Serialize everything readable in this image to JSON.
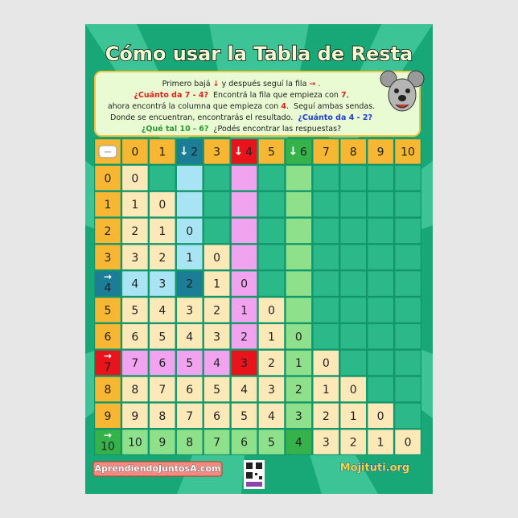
{
  "poster": {
    "title": "Cómo usar la Tabla de Resta",
    "instructions": [
      [
        {
          "text": "Primero bajá ",
          "color": "#222"
        },
        {
          "text": "↓",
          "color": "#e0201b"
        },
        {
          "text": " y después seguí la fila ",
          "color": "#222"
        },
        {
          "text": "→",
          "color": "#e0201b"
        },
        {
          "text": " .",
          "color": "#222"
        }
      ],
      [
        {
          "text": "¿Cuánto da 7 - 4?",
          "color": "#e0201b"
        },
        {
          "text": "  Encontrá la fila que empieza con ",
          "color": "#222"
        },
        {
          "text": "7",
          "color": "#e0201b"
        },
        {
          "text": ",",
          "color": "#222"
        }
      ],
      [
        {
          "text": "ahora encontrá la columna que empieza con ",
          "color": "#222"
        },
        {
          "text": "4",
          "color": "#e0201b"
        },
        {
          "text": ".  Seguí ambas sendas.",
          "color": "#222"
        }
      ],
      [
        {
          "text": "Donde se encuentran, encontrarás el resultado.  ",
          "color": "#222"
        },
        {
          "text": "¿Cuánto da 4 - 2?",
          "color": "#1f3fd0"
        }
      ],
      [
        {
          "text": "¿Qué tal 10 - 6?",
          "color": "#2a9a2a"
        },
        {
          "text": "  ¿Podés encontrar las respuestas?",
          "color": "#222"
        }
      ]
    ],
    "table": {
      "corner": "−",
      "columns": [
        {
          "label": "0"
        },
        {
          "label": "1"
        },
        {
          "label": "2",
          "arrow": "↓",
          "color": "#1c7d96",
          "tint": "#a9e4f5"
        },
        {
          "label": "3"
        },
        {
          "label": "4",
          "arrow": "↓",
          "color": "#e8131b",
          "tint": "#f2a3ef"
        },
        {
          "label": "5"
        },
        {
          "label": "6",
          "arrow": "↓",
          "color": "#36b24a",
          "tint": "#8fe08a"
        },
        {
          "label": "7"
        },
        {
          "label": "8"
        },
        {
          "label": "9"
        },
        {
          "label": "10"
        }
      ],
      "rows": [
        {
          "label": "0",
          "cells": [
            "0"
          ]
        },
        {
          "label": "1",
          "cells": [
            "1",
            "0"
          ]
        },
        {
          "label": "2",
          "cells": [
            "2",
            "1",
            "0"
          ]
        },
        {
          "label": "3",
          "cells": [
            "3",
            "2",
            "1",
            "0"
          ]
        },
        {
          "label": "4",
          "arrow": "→",
          "color": "#1c7d96",
          "cells": [
            "4",
            "3",
            "2",
            "1",
            "0"
          ]
        },
        {
          "label": "5",
          "cells": [
            "5",
            "4",
            "3",
            "2",
            "1",
            "0"
          ]
        },
        {
          "label": "6",
          "cells": [
            "6",
            "5",
            "4",
            "3",
            "2",
            "1",
            "0"
          ]
        },
        {
          "label": "7",
          "arrow": "→",
          "color": "#e8131b",
          "cells": [
            "7",
            "6",
            "5",
            "4",
            "3",
            "2",
            "1",
            "0"
          ]
        },
        {
          "label": "8",
          "cells": [
            "8",
            "7",
            "6",
            "5",
            "4",
            "3",
            "2",
            "1",
            "0"
          ]
        },
        {
          "label": "9",
          "cells": [
            "9",
            "8",
            "7",
            "6",
            "5",
            "4",
            "3",
            "2",
            "1",
            "0"
          ]
        },
        {
          "label": "10",
          "arrow": "→",
          "color": "#36b24a",
          "cells": [
            "10",
            "9",
            "8",
            "7",
            "6",
            "5",
            "4",
            "3",
            "2",
            "1",
            "0"
          ]
        }
      ]
    },
    "footer": {
      "left": "AprendiendoJuntosA.com",
      "right": "Mojituti.org"
    }
  }
}
